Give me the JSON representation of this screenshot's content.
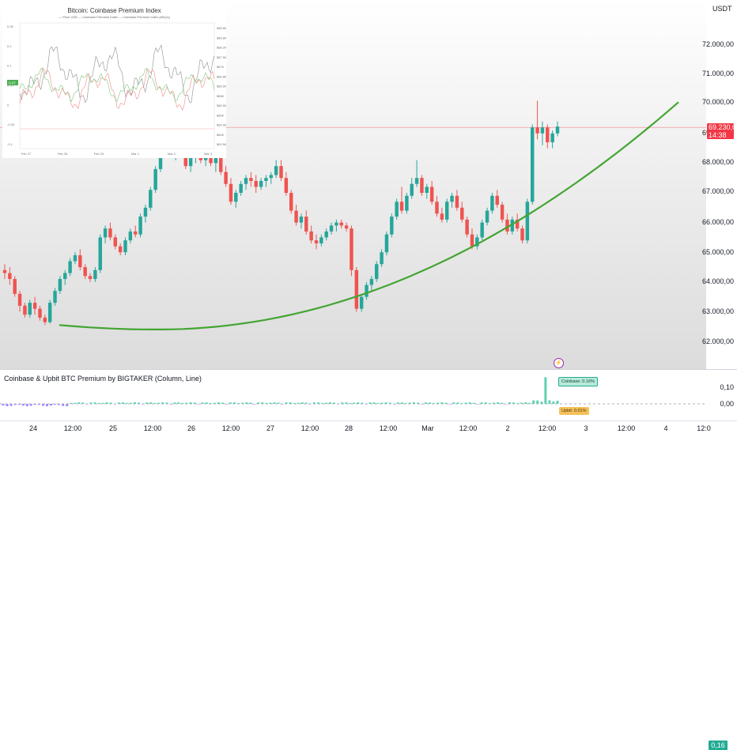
{
  "price_scale": {
    "currency": "USDT",
    "labels": [
      "72.000,00",
      "71.000,00",
      "70.000,00",
      "69.000,00",
      "68.000,00",
      "67.000,00",
      "66.000,00",
      "65.000,00",
      "64.000,00",
      "63.000,00",
      "62.000,00"
    ],
    "current_price": "69.230,00",
    "countdown": "14:38"
  },
  "time_axis": {
    "labels": [
      "24",
      "12:00",
      "25",
      "12:00",
      "26",
      "12:00",
      "27",
      "12:00",
      "28",
      "12:00",
      "Mar",
      "12:00",
      "2",
      "12:00",
      "3",
      "12:00",
      "4",
      "12:0"
    ]
  },
  "indicator": {
    "title": "Coinbase & Upbit BTC Premium by BIGTAKER (Column, Line)",
    "scale_labels": [
      "0,10",
      "0,00"
    ],
    "coinbase_value": "0,16",
    "coinbase_callout": "Coinbase: 0.16%",
    "upbit_callout": "Upbit: 0.01%"
  },
  "inset_chart": {
    "title": "Bitcoin: Coinbase Premium Index",
    "legend": "— Price USD   — Coinbase Premium Index   — Coinbase Premium Index (MA(1))",
    "left_ticks": [
      "0.26",
      "0.2",
      "0.1",
      "0.05",
      "0",
      "-0.05",
      "-0.1"
    ],
    "right_ticks": [
      "$88.8K",
      "$88.8K",
      "$88.2K",
      "$87.5K",
      "$87K",
      "$86.8K",
      "$86.5K",
      "$86K",
      "$85.5K",
      "$85K",
      "$84.5K",
      "$84K",
      "$83.5K"
    ],
    "x_ticks": [
      "Feb 27",
      "Feb 28",
      "Feb 29",
      "Mar 1",
      "Mar 2",
      "Mar 3"
    ],
    "badge": "0.07"
  },
  "colors": {
    "up": "#26a69a",
    "down": "#ef5350",
    "trendline": "#43a532",
    "current_price": "#f23645",
    "coinbase_hist": "#5fd1b0",
    "upbit_hist": "#a78bfa"
  },
  "chart_data": {
    "type": "candlestick",
    "timeframe_note": "hourly candles, Feb 24 – Mar 2",
    "ylim": [
      61500,
      72500
    ],
    "trendline": {
      "start_price": 62550,
      "min_price": 62400,
      "end_price": 70050
    },
    "current_price": 69230,
    "ohlc": [
      [
        64400,
        64600,
        64100,
        64300
      ],
      [
        64300,
        64500,
        63900,
        64100
      ],
      [
        64100,
        64200,
        63500,
        63600
      ],
      [
        63600,
        63700,
        63000,
        63200
      ],
      [
        63200,
        63300,
        62800,
        62900
      ],
      [
        62900,
        63400,
        62800,
        63300
      ],
      [
        63300,
        63500,
        62900,
        63100
      ],
      [
        63100,
        63200,
        62700,
        62800
      ],
      [
        62800,
        62900,
        62550,
        62650
      ],
      [
        62650,
        63400,
        62600,
        63300
      ],
      [
        63300,
        63800,
        63200,
        63700
      ],
      [
        63700,
        64200,
        63600,
        64100
      ],
      [
        64100,
        64400,
        63900,
        64300
      ],
      [
        64300,
        64800,
        64200,
        64700
      ],
      [
        64700,
        65000,
        64600,
        64900
      ],
      [
        64900,
        65100,
        64400,
        64500
      ],
      [
        64500,
        64600,
        64100,
        64200
      ],
      [
        64200,
        64300,
        64000,
        64100
      ],
      [
        64100,
        64500,
        64000,
        64400
      ],
      [
        64400,
        65600,
        64300,
        65500
      ],
      [
        65500,
        65900,
        65300,
        65800
      ],
      [
        65800,
        66000,
        65400,
        65500
      ],
      [
        65500,
        65600,
        65100,
        65200
      ],
      [
        65200,
        65300,
        64900,
        65000
      ],
      [
        65000,
        65500,
        64900,
        65400
      ],
      [
        65400,
        65800,
        65300,
        65700
      ],
      [
        65700,
        65900,
        65500,
        65600
      ],
      [
        65600,
        66300,
        65500,
        66200
      ],
      [
        66200,
        66600,
        66000,
        66500
      ],
      [
        66500,
        67200,
        66400,
        67100
      ],
      [
        67100,
        67900,
        67000,
        67800
      ],
      [
        67800,
        68600,
        67700,
        68500
      ],
      [
        68500,
        69600,
        68400,
        69400
      ],
      [
        69400,
        69700,
        68300,
        68400
      ],
      [
        68400,
        68700,
        68100,
        68600
      ],
      [
        68600,
        69100,
        68300,
        68400
      ],
      [
        68400,
        68500,
        67800,
        67900
      ],
      [
        67900,
        68300,
        67700,
        68200
      ],
      [
        68200,
        68600,
        68000,
        68500
      ],
      [
        68500,
        68700,
        68000,
        68100
      ],
      [
        68100,
        68400,
        67900,
        68300
      ],
      [
        68300,
        68500,
        67900,
        68000
      ],
      [
        68000,
        68300,
        67700,
        68200
      ],
      [
        68200,
        68300,
        67600,
        67700
      ],
      [
        67700,
        67900,
        67200,
        67300
      ],
      [
        67300,
        67500,
        66600,
        66700
      ],
      [
        66700,
        67100,
        66500,
        67000
      ],
      [
        67000,
        67400,
        66900,
        67300
      ],
      [
        67300,
        67600,
        67100,
        67500
      ],
      [
        67500,
        67700,
        67200,
        67400
      ],
      [
        67400,
        67600,
        67000,
        67200
      ],
      [
        67200,
        67500,
        67100,
        67400
      ],
      [
        67400,
        67600,
        67200,
        67500
      ],
      [
        67500,
        67700,
        67300,
        67600
      ],
      [
        67600,
        68100,
        67500,
        67900
      ],
      [
        67900,
        68100,
        67400,
        67500
      ],
      [
        67500,
        67700,
        66900,
        67000
      ],
      [
        67000,
        67100,
        66300,
        66400
      ],
      [
        66400,
        66600,
        65900,
        66000
      ],
      [
        66000,
        66300,
        65800,
        66200
      ],
      [
        66200,
        66400,
        65600,
        65700
      ],
      [
        65700,
        65900,
        65300,
        65400
      ],
      [
        65400,
        65600,
        65100,
        65300
      ],
      [
        65300,
        65600,
        65200,
        65500
      ],
      [
        65500,
        65800,
        65400,
        65700
      ],
      [
        65700,
        66000,
        65600,
        65900
      ],
      [
        65900,
        66100,
        65700,
        66000
      ],
      [
        66000,
        66100,
        65800,
        65900
      ],
      [
        65900,
        66000,
        65700,
        65800
      ],
      [
        65800,
        65900,
        64200,
        64400
      ],
      [
        64400,
        64500,
        63000,
        63100
      ],
      [
        63100,
        63600,
        63000,
        63500
      ],
      [
        63500,
        64000,
        63400,
        63900
      ],
      [
        63900,
        64200,
        63700,
        64100
      ],
      [
        64100,
        64700,
        64000,
        64600
      ],
      [
        64600,
        65100,
        64500,
        65000
      ],
      [
        65000,
        65700,
        64900,
        65600
      ],
      [
        65600,
        66300,
        65500,
        66200
      ],
      [
        66200,
        66800,
        66100,
        66700
      ],
      [
        66700,
        67200,
        66300,
        66400
      ],
      [
        66400,
        67000,
        66300,
        66900
      ],
      [
        66900,
        67500,
        66800,
        67300
      ],
      [
        67300,
        68100,
        67200,
        67500
      ],
      [
        67500,
        67600,
        66900,
        67000
      ],
      [
        67000,
        67300,
        66800,
        67200
      ],
      [
        67200,
        67400,
        66600,
        66700
      ],
      [
        66700,
        66900,
        66200,
        66300
      ],
      [
        66300,
        66500,
        66000,
        66100
      ],
      [
        66100,
        66800,
        66000,
        66700
      ],
      [
        66700,
        67000,
        66500,
        66900
      ],
      [
        66900,
        67100,
        66400,
        66500
      ],
      [
        66500,
        66700,
        66000,
        66100
      ],
      [
        66100,
        66200,
        65500,
        65600
      ],
      [
        65600,
        65800,
        65100,
        65200
      ],
      [
        65200,
        65600,
        65100,
        65500
      ],
      [
        65500,
        66100,
        65400,
        66000
      ],
      [
        66000,
        66500,
        65900,
        66400
      ],
      [
        66400,
        67000,
        66300,
        66900
      ],
      [
        66900,
        67100,
        66500,
        66600
      ],
      [
        66600,
        66700,
        66000,
        66100
      ],
      [
        66100,
        66300,
        65600,
        65700
      ],
      [
        65700,
        66200,
        65600,
        66100
      ],
      [
        66100,
        66300,
        65700,
        65800
      ],
      [
        65800,
        65900,
        65300,
        65400
      ],
      [
        65400,
        66800,
        65300,
        66700
      ],
      [
        66700,
        69300,
        66600,
        69200
      ],
      [
        69200,
        70100,
        68800,
        69000
      ],
      [
        69000,
        69400,
        68600,
        69200
      ],
      [
        69200,
        69300,
        68500,
        68700
      ],
      [
        68700,
        69100,
        68500,
        69000
      ],
      [
        69000,
        69400,
        68900,
        69230
      ]
    ],
    "indicator": {
      "coinbase_premium_last": 0.16,
      "upbit_premium_last": 0.01,
      "ylim": [
        -0.03,
        0.18
      ]
    }
  }
}
